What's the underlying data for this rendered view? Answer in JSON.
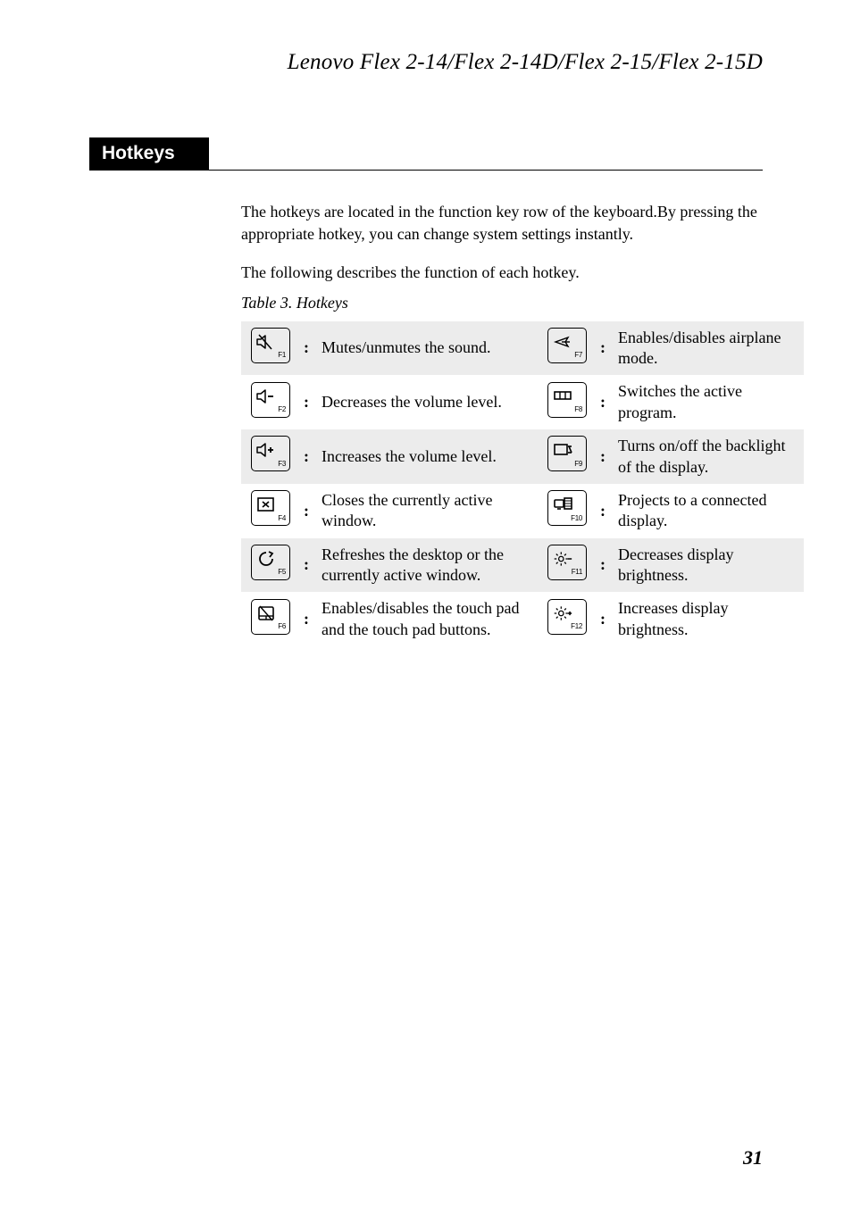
{
  "document": {
    "title": "Lenovo Flex 2-14/Flex 2-14D/Flex 2-15/Flex 2-15D",
    "page_number": "31"
  },
  "section": {
    "heading": "Hotkeys",
    "intro1": "The hotkeys are located in the function key row of the keyboard.By pressing the appropriate hotkey, you can change system settings instantly.",
    "intro2": "The following describes the function of each hotkey.",
    "table_caption": "Table 3. Hotkeys"
  },
  "hotkeys": {
    "rows": [
      {
        "left_key": "F1",
        "left_icon": "mute",
        "left_desc": "Mutes/unmutes the sound.",
        "right_key": "F7",
        "right_icon": "airplane",
        "right_desc": "Enables/disables airplane mode.",
        "shaded": true
      },
      {
        "left_key": "F2",
        "left_icon": "vol-down",
        "left_desc": "Decreases the volume level.",
        "right_key": "F8",
        "right_icon": "task-switch",
        "right_desc": "Switches the active program.",
        "shaded": false
      },
      {
        "left_key": "F3",
        "left_icon": "vol-up",
        "left_desc": "Increases the volume level.",
        "right_key": "F9",
        "right_icon": "backlight",
        "right_desc": "Turns on/off the backlight of the display.",
        "shaded": true
      },
      {
        "left_key": "F4",
        "left_icon": "close-win",
        "left_desc": "Closes the currently active window.",
        "right_key": "F10",
        "right_icon": "project",
        "right_desc": "Projects to a connected display.",
        "shaded": false
      },
      {
        "left_key": "F5",
        "left_icon": "refresh",
        "left_desc": "Refreshes the desktop or the currently active window.",
        "right_key": "F11",
        "right_icon": "bright-down",
        "right_desc": "Decreases display brightness.",
        "shaded": true
      },
      {
        "left_key": "F6",
        "left_icon": "touchpad",
        "left_desc": "Enables/disables the touch pad and the touch pad buttons.",
        "right_key": "F12",
        "right_icon": "bright-up",
        "right_desc": "Increases display brightness.",
        "shaded": false
      }
    ],
    "colon": ":"
  },
  "style": {
    "shaded_row_bg": "#ececec",
    "page_bg": "#ffffff",
    "text_color": "#000000"
  }
}
